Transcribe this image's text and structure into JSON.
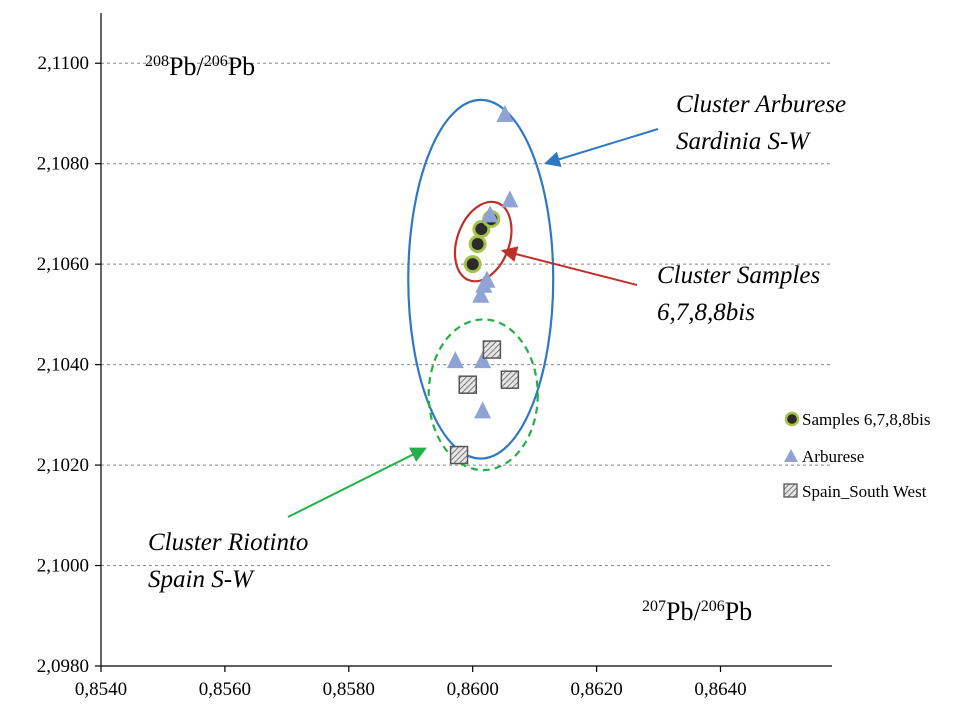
{
  "chart_data": {
    "type": "scatter",
    "xlabel": {
      "sup1": "207",
      "base1": "Pb/",
      "sup2": "206",
      "base2": "Pb"
    },
    "ylabel": {
      "sup1": "208",
      "base1": "Pb/",
      "sup2": "206",
      "base2": "Pb"
    },
    "xlim": [
      0.854,
      0.8658
    ],
    "ylim": [
      2.098,
      2.111
    ],
    "x_ticks": [
      0.854,
      0.856,
      0.858,
      0.86,
      0.862,
      0.864
    ],
    "x_tick_labels": [
      "0,8540",
      "0,8560",
      "0,8580",
      "0,8600",
      "0,8620",
      "0,8640"
    ],
    "y_ticks": [
      2.098,
      2.1,
      2.102,
      2.104,
      2.106,
      2.108,
      2.11
    ],
    "y_tick_labels": [
      "2,0980",
      "2,1000",
      "2,1020",
      "2,1040",
      "2,1060",
      "2,1080",
      "2,1100"
    ],
    "grid": "horizontal-dashed",
    "legend_position": "right",
    "series": [
      {
        "name": "Samples 6,7,8,8bis",
        "marker": "circle",
        "fill": "#2b2b2b",
        "stroke": "#a6c24a",
        "points": [
          [
            0.86,
            2.106
          ],
          [
            0.86008,
            2.1064
          ],
          [
            0.86014,
            2.1067
          ],
          [
            0.8603,
            2.1069
          ]
        ]
      },
      {
        "name": "Arburese",
        "marker": "triangle",
        "fill": "#8fa3d4",
        "points": [
          [
            0.86052,
            2.109
          ],
          [
            0.8606,
            2.1073
          ],
          [
            0.86028,
            2.107
          ],
          [
            0.86018,
            2.1056
          ],
          [
            0.86013,
            2.1054
          ],
          [
            0.86023,
            2.1057
          ],
          [
            0.85972,
            2.1041
          ],
          [
            0.86016,
            2.1041
          ],
          [
            0.86016,
            2.1031
          ]
        ]
      },
      {
        "name": "Spain_South West",
        "marker": "hatched-square",
        "fill": "#d9d9d9",
        "stroke": "#555555",
        "points": [
          [
            0.86031,
            2.1043
          ],
          [
            0.85992,
            2.1036
          ],
          [
            0.8606,
            2.1037
          ],
          [
            0.85978,
            2.1022
          ]
        ]
      }
    ],
    "clusters": [
      {
        "label_lines": [
          "Cluster Arburese",
          "Sardinia S-W"
        ],
        "color": "#2f78c4",
        "dashed": false,
        "cx": 0.86013,
        "cy": 2.1057,
        "rx": 0.00117,
        "ry": 0.00357
      },
      {
        "label_lines": [
          "Cluster Samples",
          "6,7,8,8bis"
        ],
        "color": "#c0302a",
        "dashed": false,
        "cx": 0.86017,
        "cy": 2.10645,
        "rx": 0.00042,
        "ry": 0.00082
      },
      {
        "label_lines": [
          "Cluster Riotinto",
          "Spain S-W"
        ],
        "color": "#22b04a",
        "dashed": true,
        "cx": 0.86017,
        "cy": 2.1034,
        "rx": 0.00088,
        "ry": 0.0015
      }
    ]
  }
}
